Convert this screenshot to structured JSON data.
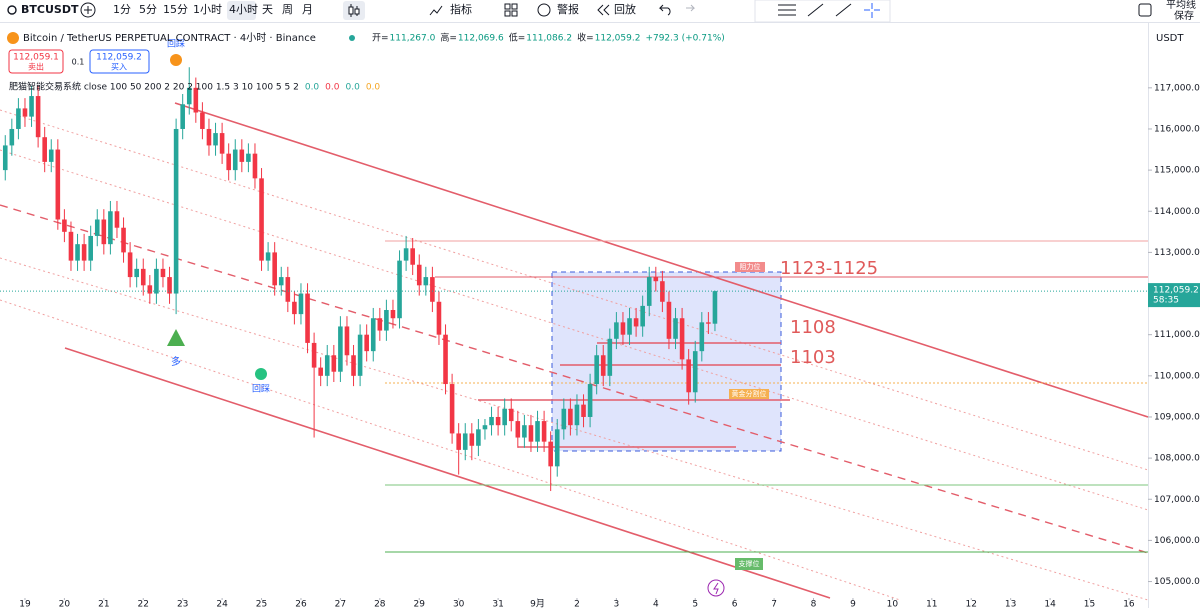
{
  "toolbar": {
    "symbol": "BTCUSDT",
    "intervals": [
      "1分",
      "5分",
      "15分",
      "1小时",
      "4小时",
      "天",
      "周",
      "月"
    ],
    "indicators": "指标",
    "alerts": "警报",
    "replay": "回放",
    "template": "平均线",
    "save": "保存"
  },
  "chart_data": {
    "type": "candlestick",
    "title": "Bitcoin / TetherUS PERPETUAL CONTRACT · 4小时 · Binance",
    "header": [
      {
        "label": "开=",
        "value": "111,267.0"
      },
      {
        "label": "高=",
        "value": "112,069.6"
      },
      {
        "label": "低=",
        "value": "111,086.2"
      },
      {
        "label": "收=",
        "value": "112,059.2"
      }
    ],
    "change": "+792.3 (+0.71%)",
    "sell": {
      "price": "112,059.1",
      "label": "卖出"
    },
    "spread": "0.1",
    "buy": {
      "price": "112,059.2",
      "label": "买入"
    },
    "indicator": {
      "name": "肥猫智能交易系统 close 100 50 200 2 20 2 100 1.5 3 10 100 5 5 2",
      "values": [
        "0.0",
        "0.0",
        "0.0",
        "0.0"
      ]
    },
    "currency": "USDT",
    "last_price": {
      "value": 112059.2,
      "label": "112,059.2",
      "countdown": "58:35"
    },
    "up_color": "#26a69a",
    "down_color": "#f23645",
    "open": [
      115000,
      115600,
      116000,
      116500,
      116300,
      116800,
      115800,
      115200,
      115500,
      113800,
      113500,
      112800,
      113200,
      112800,
      113400,
      113800,
      113200,
      114000,
      113600,
      113000,
      112400,
      112600,
      112200,
      112000,
      112600,
      112400,
      112000,
      116000,
      116600,
      117000,
      116400,
      116000,
      115600,
      115900,
      115400,
      115000,
      115500,
      115200,
      115400,
      114800,
      112800,
      113000,
      112200,
      112400,
      111800,
      111500,
      112000,
      110800,
      110200,
      110000,
      110500,
      110100,
      111200,
      110500,
      110000,
      111000,
      110600,
      111400,
      111100,
      111600,
      111400,
      112800,
      113100,
      112700,
      112200,
      112400,
      111800,
      111000,
      109800,
      108600,
      108200,
      108600,
      108300,
      108700,
      108800,
      109000,
      108800,
      109200,
      108900,
      108500,
      108800,
      108400,
      108900,
      108400,
      107800,
      108700,
      109200,
      108800,
      109300,
      109000,
      109800,
      110500,
      110000,
      110900,
      111300,
      111000,
      111400,
      111200,
      111700,
      112400,
      112300,
      111800,
      110900,
      111400,
      110400,
      109600,
      110600,
      111300,
      111267
    ],
    "high": [
      115850,
      116250,
      116750,
      116750,
      117050,
      117050,
      116050,
      115750,
      115750,
      114050,
      113750,
      113450,
      113450,
      113650,
      114050,
      114050,
      114250,
      114250,
      113850,
      113250,
      112850,
      112850,
      112450,
      112850,
      112850,
      112650,
      116250,
      116850,
      117500,
      117250,
      116650,
      116250,
      116150,
      116150,
      115650,
      115750,
      115750,
      115650,
      115650,
      115050,
      113250,
      113250,
      112650,
      112650,
      112050,
      112250,
      112250,
      111050,
      110450,
      110750,
      110750,
      111450,
      111450,
      110750,
      111250,
      111250,
      111650,
      111650,
      111850,
      111850,
      113050,
      113400,
      113350,
      112950,
      112650,
      112650,
      112050,
      111250,
      110050,
      108850,
      108850,
      108850,
      108950,
      108950,
      109250,
      109250,
      109450,
      109450,
      109150,
      109050,
      109050,
      109150,
      109150,
      108650,
      108950,
      109450,
      109450,
      109550,
      109550,
      110050,
      110750,
      110750,
      111150,
      111550,
      111550,
      111650,
      111650,
      111950,
      112650,
      112650,
      112550,
      112050,
      111650,
      111650,
      110650,
      110850,
      111550,
      111550,
      112069.6
    ],
    "low": [
      114750,
      115350,
      115750,
      116050,
      116050,
      115550,
      114950,
      114950,
      113550,
      113250,
      112550,
      112550,
      112550,
      112550,
      113150,
      112950,
      112950,
      113350,
      112750,
      112150,
      112150,
      111950,
      111750,
      111750,
      112150,
      111750,
      111500,
      115750,
      116350,
      116150,
      115750,
      115350,
      115350,
      115150,
      114750,
      114750,
      114950,
      114950,
      114550,
      112550,
      112550,
      111950,
      111950,
      111550,
      111250,
      111250,
      110550,
      108500,
      109750,
      109750,
      109850,
      109850,
      110250,
      109750,
      109750,
      110350,
      110350,
      110850,
      110850,
      111150,
      111150,
      112550,
      112450,
      111950,
      111950,
      111550,
      110750,
      109550,
      108350,
      107600,
      107950,
      107950,
      108050,
      108450,
      108550,
      108550,
      108550,
      108650,
      108250,
      108250,
      108150,
      108150,
      108150,
      107200,
      107550,
      108450,
      108550,
      108550,
      108750,
      108750,
      109550,
      109750,
      109750,
      110650,
      110750,
      110750,
      110950,
      110950,
      111450,
      112050,
      111550,
      110650,
      110650,
      110150,
      109300,
      109350,
      110350,
      111017,
      111086.2
    ],
    "close": [
      115600,
      116000,
      116500,
      116300,
      116800,
      115800,
      115200,
      115500,
      113800,
      113500,
      112800,
      113200,
      112800,
      113400,
      113800,
      113200,
      114000,
      113600,
      113000,
      112400,
      112600,
      112200,
      112000,
      112600,
      112400,
      112000,
      116000,
      116600,
      117000,
      116400,
      116000,
      115600,
      115900,
      115400,
      115000,
      115500,
      115200,
      115400,
      114800,
      112800,
      113000,
      112200,
      112400,
      111800,
      111500,
      112000,
      110800,
      110200,
      110000,
      110500,
      110100,
      111200,
      110500,
      110000,
      111000,
      110600,
      111400,
      111100,
      111600,
      111400,
      112800,
      113100,
      112700,
      112200,
      112400,
      111800,
      111000,
      109800,
      108600,
      108200,
      108600,
      108300,
      108700,
      108800,
      109000,
      108800,
      109200,
      108900,
      108500,
      108800,
      108400,
      108900,
      108400,
      107800,
      108700,
      109200,
      108800,
      109300,
      109000,
      109800,
      110500,
      110000,
      110900,
      111300,
      111000,
      111400,
      111200,
      111700,
      112400,
      112300,
      111800,
      110900,
      111400,
      110400,
      109600,
      110600,
      111300,
      111267,
      112059.2
    ],
    "xlim": [
      -0.8,
      173.9
    ],
    "xticks": [
      {
        "value": 3,
        "label": "19"
      },
      {
        "value": 9,
        "label": "20"
      },
      {
        "value": 15,
        "label": "21"
      },
      {
        "value": 21,
        "label": "22"
      },
      {
        "value": 27,
        "label": "23"
      },
      {
        "value": 33,
        "label": "24"
      },
      {
        "value": 39,
        "label": "25"
      },
      {
        "value": 45,
        "label": "26"
      },
      {
        "value": 51,
        "label": "27"
      },
      {
        "value": 57,
        "label": "28"
      },
      {
        "value": 63,
        "label": "29"
      },
      {
        "value": 69,
        "label": "30"
      },
      {
        "value": 75,
        "label": "31"
      },
      {
        "value": 81,
        "label": "9月"
      },
      {
        "value": 87,
        "label": "2"
      },
      {
        "value": 93,
        "label": "3"
      },
      {
        "value": 99,
        "label": "4"
      },
      {
        "value": 105,
        "label": "5"
      },
      {
        "value": 111,
        "label": "6"
      },
      {
        "value": 117,
        "label": "7"
      },
      {
        "value": 123,
        "label": "8"
      },
      {
        "value": 129,
        "label": "9"
      },
      {
        "value": 135,
        "label": "10"
      },
      {
        "value": 141,
        "label": "11"
      },
      {
        "value": 147,
        "label": "12"
      },
      {
        "value": 153,
        "label": "13"
      },
      {
        "value": 159,
        "label": "14"
      },
      {
        "value": 165,
        "label": "15"
      },
      {
        "value": 171,
        "label": "16"
      }
    ],
    "ylim": [
      104600,
      118600
    ],
    "yticks": [
      {
        "value": 105000,
        "label": "105,000.0"
      },
      {
        "value": 106000,
        "label": "106,000.0"
      },
      {
        "value": 107000,
        "label": "107,000.0"
      },
      {
        "value": 108000,
        "label": "108,000.0"
      },
      {
        "value": 109000,
        "label": "109,000.0"
      },
      {
        "value": 110000,
        "label": "110,000.0"
      },
      {
        "value": 111000,
        "label": "111,000.0"
      },
      {
        "value": 113000,
        "label": "113,000.0"
      },
      {
        "value": 114000,
        "label": "114,000.0"
      },
      {
        "value": 115000,
        "label": "115,000.0"
      },
      {
        "value": 116000,
        "label": "116,000.0"
      },
      {
        "value": 117000,
        "label": "117,000.0"
      }
    ],
    "grid": false,
    "annotations": {
      "range": "1123-1125",
      "level_1": "1108",
      "level_2": "1103",
      "resistance": "阻力位",
      "golden": "黄金分割位",
      "support": "支撑位",
      "long": "多",
      "pullback_1": "回踩",
      "pullback_2": "回踩"
    }
  }
}
